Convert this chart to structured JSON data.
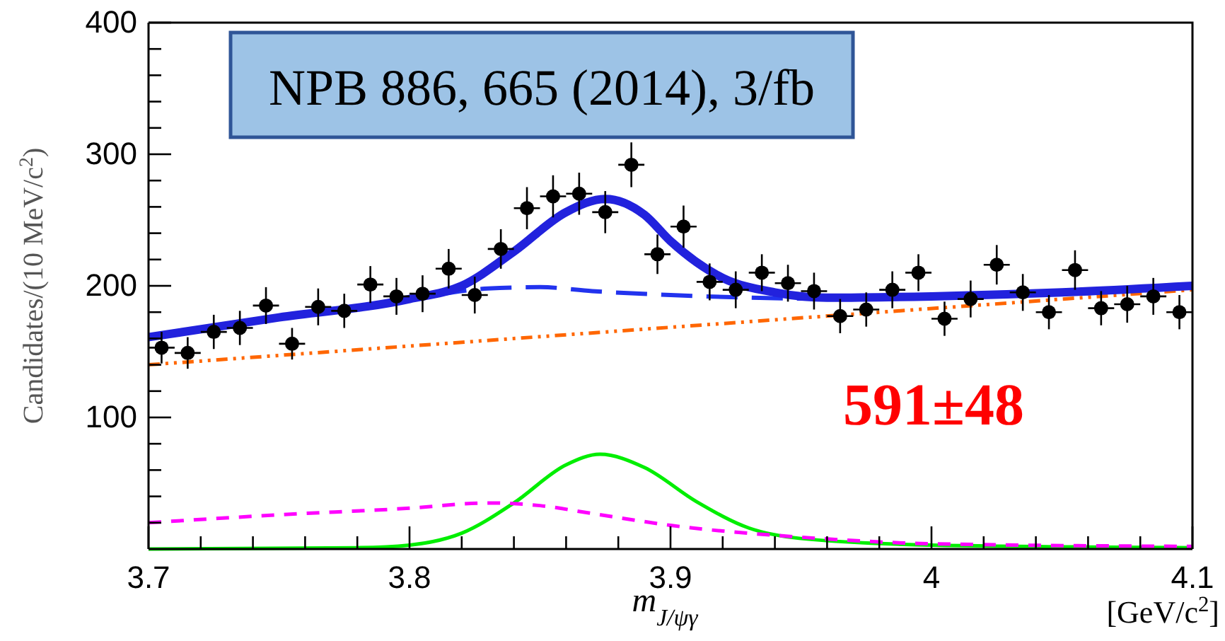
{
  "chart_data": {
    "type": "scatter",
    "xlabel": "m$_{J/ψγ}$",
    "ylabel": "Candidates/(10 MeV/c$^{2}$)",
    "xlim": [
      3.7,
      4.1
    ],
    "ylim": [
      0,
      400
    ],
    "xticks": [
      3.7,
      {
        "value": 3.72,
        "label": null
      },
      {
        "value": 3.74,
        "label": null
      },
      {
        "value": 3.76,
        "label": null
      },
      {
        "value": 3.78,
        "label": null
      },
      3.8,
      {
        "value": 3.82,
        "label": null
      },
      {
        "value": 3.84,
        "label": null
      },
      {
        "value": 3.86,
        "label": null
      },
      {
        "value": 3.88,
        "label": null
      },
      3.9,
      {
        "value": 3.92,
        "label": null
      },
      {
        "value": 3.94,
        "label": null
      },
      {
        "value": 3.96,
        "label": null
      },
      {
        "value": 3.98,
        "label": null
      },
      4,
      {
        "value": 4.02,
        "label": null
      },
      {
        "value": 4.04,
        "label": null
      },
      {
        "value": 4.06,
        "label": null
      },
      {
        "value": 4.08,
        "label": null
      },
      4.1
    ],
    "yticks": [
      {
        "value": 20,
        "label": null
      },
      {
        "value": 40,
        "label": null
      },
      {
        "value": 60,
        "label": null
      },
      {
        "value": 80,
        "label": null
      },
      100,
      {
        "value": 120,
        "label": null
      },
      {
        "value": 140,
        "label": null
      },
      {
        "value": 160,
        "label": null
      },
      {
        "value": 180,
        "label": null
      },
      200,
      {
        "value": 220,
        "label": null
      },
      {
        "value": 240,
        "label": null
      },
      {
        "value": 260,
        "label": null
      },
      {
        "value": 280,
        "label": null
      },
      300,
      {
        "value": 320,
        "label": null
      },
      {
        "value": 340,
        "label": null
      },
      {
        "value": 360,
        "label": null
      },
      {
        "value": 380,
        "label": null
      },
      400
    ],
    "grid": false,
    "legend": false,
    "annotations": [
      "NPB 886, 665 (2014), 3/fb",
      "591±48",
      "[GeV/c$^{2}$]"
    ],
    "series": [
      {
        "type": "line",
        "color": "#00ee00",
        "line_style": "solid",
        "x": [
          3.7,
          3.78,
          3.8,
          3.82,
          3.84,
          3.86,
          3.873,
          3.89,
          3.91,
          3.93,
          3.95,
          4.0,
          4.1
        ],
        "values": [
          0,
          1,
          3,
          12,
          35,
          64,
          72,
          62,
          36,
          16,
          8,
          3,
          1
        ]
      },
      {
        "type": "line",
        "color": "#ff00ff",
        "line_style": "dashed",
        "x": [
          3.7,
          3.75,
          3.8,
          3.83,
          3.85,
          3.87,
          3.9,
          3.95,
          4.0,
          4.1
        ],
        "values": [
          20,
          26,
          31,
          35,
          33,
          27,
          18,
          9,
          4,
          2
        ]
      },
      {
        "type": "line",
        "color": "#ff6600",
        "line_style": "dashdotdot",
        "x": [
          3.7,
          4.1
        ],
        "values": [
          140,
          197
        ]
      },
      {
        "type": "line",
        "color": "#2233ee",
        "line_style": "longdash",
        "x": [
          3.81,
          3.83,
          3.85,
          3.87,
          3.9,
          3.93,
          3.96
        ],
        "values": [
          193,
          198,
          199,
          196,
          193,
          191,
          190
        ]
      },
      {
        "type": "line",
        "color": "#2222dd",
        "line_style": "solid",
        "x": [
          3.7,
          3.75,
          3.8,
          3.82,
          3.84,
          3.86,
          3.875,
          3.89,
          3.9,
          3.92,
          3.94,
          3.96,
          4.0,
          4.05,
          4.1
        ],
        "values": [
          161,
          176,
          190,
          200,
          226,
          256,
          266,
          254,
          234,
          206,
          195,
          191,
          192,
          195,
          200
        ]
      },
      {
        "type": "scatter",
        "color": "#000000",
        "marker": "circle",
        "x": [
          3.705,
          3.715,
          3.725,
          3.735,
          3.745,
          3.755,
          3.765,
          3.775,
          3.785,
          3.795,
          3.805,
          3.815,
          3.825,
          3.835,
          3.845,
          3.855,
          3.865,
          3.875,
          3.885,
          3.895,
          3.905,
          3.915,
          3.925,
          3.935,
          3.945,
          3.955,
          3.965,
          3.975,
          3.985,
          3.995,
          4.005,
          4.015,
          4.025,
          4.035,
          4.045,
          4.055,
          4.065,
          4.075,
          4.085,
          4.095
        ],
        "values": [
          153,
          149,
          165,
          168,
          185,
          156,
          184,
          181,
          201,
          192,
          194,
          213,
          193,
          228,
          259,
          268,
          270,
          256,
          292,
          224,
          245,
          203,
          197,
          210,
          202,
          196,
          177,
          182,
          197,
          210,
          175,
          190,
          216,
          195,
          180,
          212,
          183,
          186,
          192,
          180
        ],
        "errors": [
          12,
          12,
          13,
          13,
          14,
          12,
          14,
          13,
          14,
          14,
          14,
          15,
          14,
          15,
          16,
          16,
          16,
          16,
          17,
          15,
          16,
          14,
          14,
          14,
          14,
          14,
          13,
          13,
          14,
          14,
          13,
          14,
          15,
          14,
          13,
          15,
          13,
          14,
          14,
          13
        ],
        "xerrors": [
          0.005,
          0.005,
          0.005,
          0.005,
          0.005,
          0.005,
          0.005,
          0.005,
          0.005,
          0.005,
          0.005,
          0.005,
          0.005,
          0.005,
          0.005,
          0.005,
          0.005,
          0.005,
          0.005,
          0.005,
          0.005,
          0.005,
          0.005,
          0.005,
          0.005,
          0.005,
          0.005,
          0.005,
          0.005,
          0.005,
          0.005,
          0.005,
          0.005,
          0.005,
          0.005,
          0.005,
          0.005,
          0.005,
          0.005,
          0.005
        ]
      }
    ]
  }
}
